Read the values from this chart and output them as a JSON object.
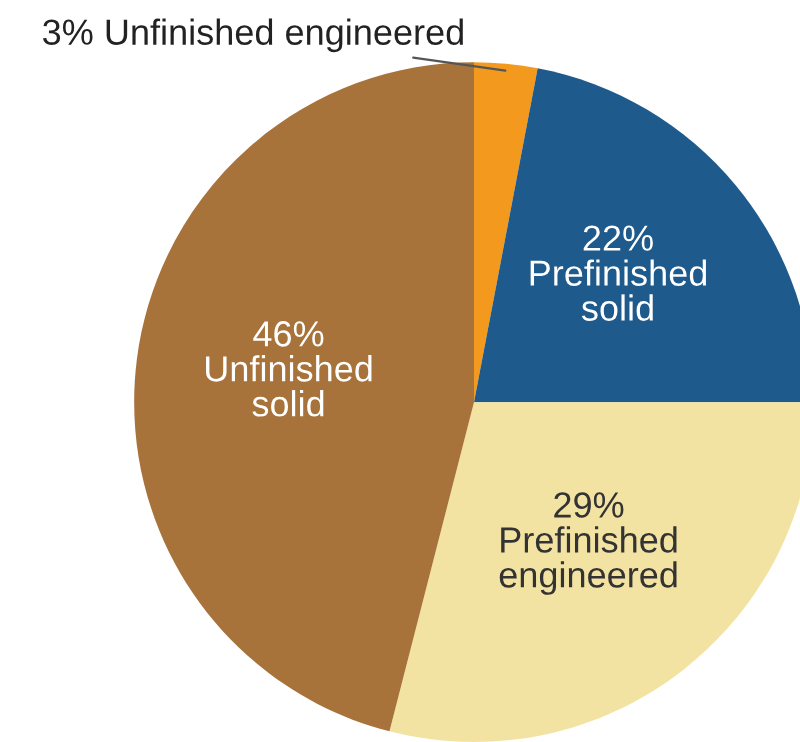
{
  "chart_data": {
    "type": "pie",
    "categories": [
      "Unfinished engineered",
      "Prefinished solid",
      "Prefinished engineered",
      "Unfinished solid"
    ],
    "values": [
      3,
      22,
      29,
      46
    ],
    "value_labels": [
      "3%",
      "22%",
      "29%",
      "46%"
    ],
    "colors": [
      "#f39a1e",
      "#1f5a8c",
      "#f3e3a3",
      "#a8733a"
    ]
  }
}
